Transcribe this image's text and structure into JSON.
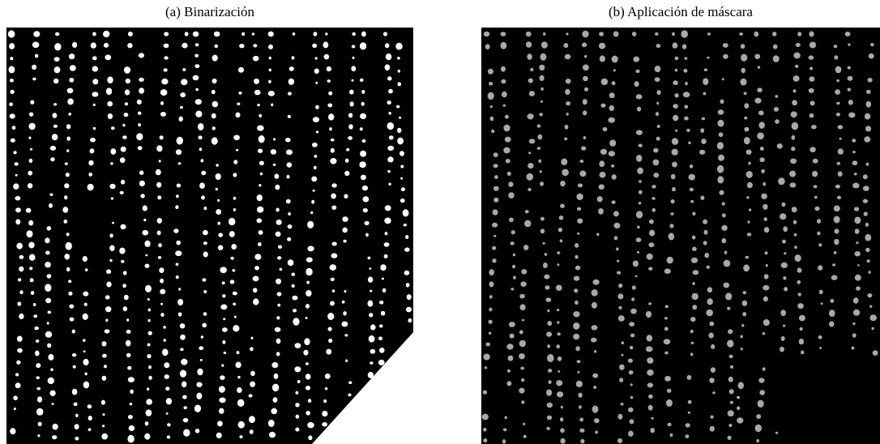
{
  "figure": {
    "panels": [
      {
        "caption": "(a) Binarización"
      },
      {
        "caption": "(b) Aplicación de máscara"
      }
    ]
  }
}
